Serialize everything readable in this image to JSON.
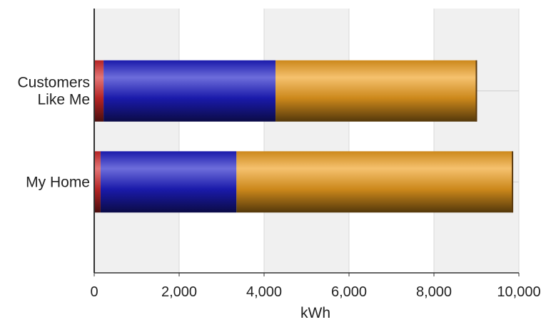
{
  "chart_data": {
    "type": "bar",
    "orientation": "horizontal",
    "stacked": true,
    "categories": [
      "Customers Like Me",
      "My Home"
    ],
    "category_label_lines": [
      [
        "Customers",
        "Like Me"
      ],
      [
        "My Home"
      ]
    ],
    "series": [
      {
        "color": "#d42a2a",
        "values": [
          220,
          150
        ]
      },
      {
        "color": "#1e1ec8",
        "values": [
          4050,
          3200
        ]
      },
      {
        "color": "#f0a020",
        "values": [
          4730,
          6500
        ]
      }
    ],
    "xlabel": "kWh",
    "ylabel": "",
    "xlim": [
      0,
      10000
    ],
    "x_ticks": [
      0,
      2000,
      4000,
      6000,
      8000,
      10000
    ],
    "x_tick_labels": [
      "0",
      "2,000",
      "4,000",
      "6,000",
      "8,000",
      "10,000"
    ],
    "grid": "vertical",
    "plot_background": "alternating grey and white vertical bands",
    "legend": "none"
  }
}
